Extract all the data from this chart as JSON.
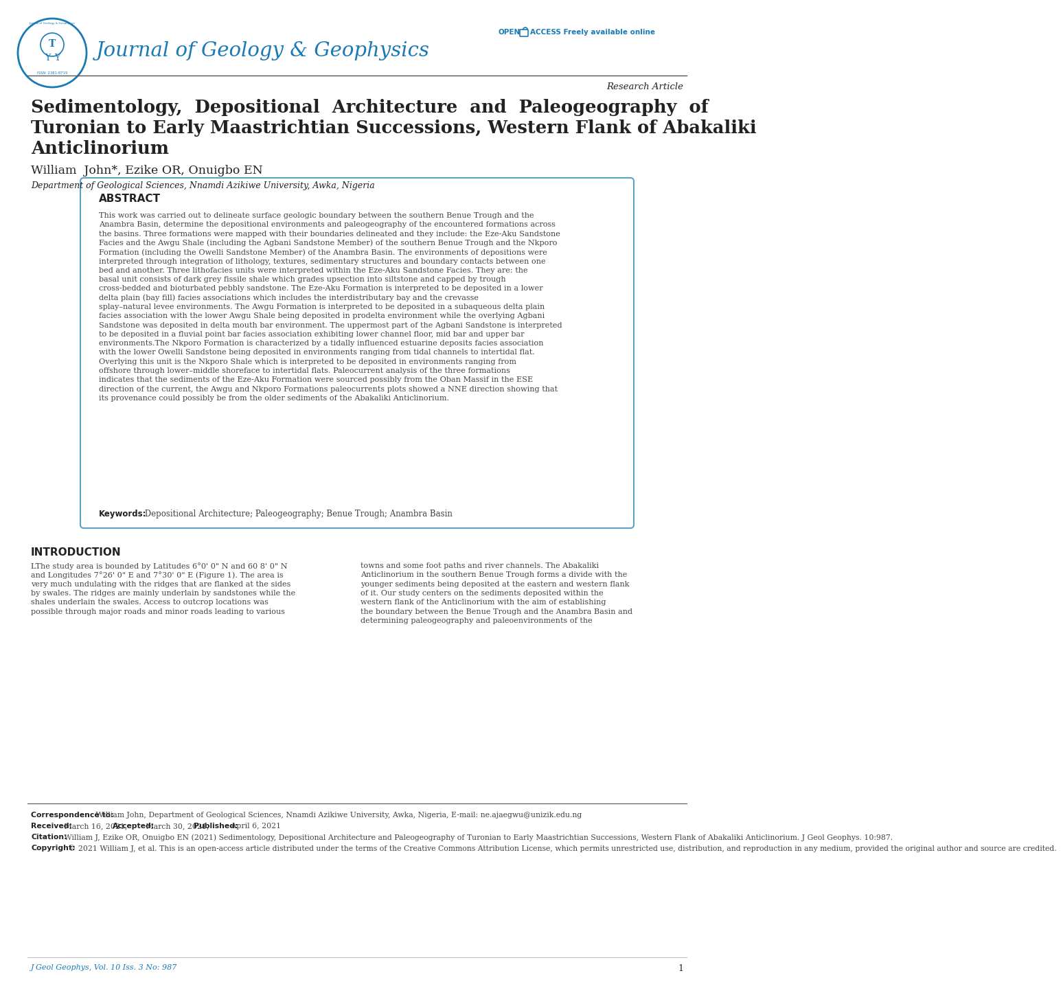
{
  "bg_color": "#ffffff",
  "journal_name": "Journal of Geology & Geophysics",
  "journal_color": "#1a7ab5",
  "research_article_text": "Research Article",
  "divider_color": "#333333",
  "article_title_line1": "Sedimentology,  Depositional  Architecture  and  Paleogeography  of",
  "article_title_line2": "Turonian to Early Maastrichtian Successions, Western Flank of Abakaliki",
  "article_title_line3": "Anticlinorium",
  "authors": "William  John*, Ezike OR, Onuigbo EN",
  "affiliation": "Department of Geological Sciences, Nnamdi Azikiwe University, Awka, Nigeria",
  "abstract_title": "ABSTRACT",
  "abstract_body": "This work was carried out to delineate surface geologic boundary between the southern Benue Trough and the Anambra Basin, determine the depositional environments and paleogeography of the encountered formations across the basins. Three formations were mapped with their boundaries delineated and they include: the Eze-Aku Sandstone Facies and the Awgu Shale (including the Agbani Sandstone Member) of the southern Benue Trough and the Nkporo Formation (including the Owelli Sandstone Member) of the Anambra Basin. The environments of depositions were interpreted through integration of lithology, textures, sedimentary structures and boundary contacts between one bed and another. Three lithofacies units were interpreted within the Eze-Aku Sandstone Facies. They are: the basal unit consists of dark grey fissile shale which grades upsection into siltstone and capped by trough cross-bedded and bioturbated pebbly sandstone. The Eze-Aku Formation is interpreted to be deposited in a lower delta plain (bay fill) facies associations which includes the interdistributary bay and the crevasse splay–natural levee environments. The Awgu Formation is interpreted to be deposited in a subaqueous delta plain facies association with the lower Awgu Shale being deposited in prodelta environment while the overlying Agbani Sandstone was deposited in delta mouth bar environment. The uppermost part of the Agbani Sandstone is interpreted to be deposited in a fluvial point bar facies association exhibiting lower channel floor, mid bar and upper bar environments.The Nkporo Formation is characterized by a tidally influenced estuarine deposits facies association with the lower Owelli Sandstone being deposited in environments ranging from tidal channels to intertidal flat. Overlying this unit is the Nkporo Shale which is interpreted to be deposited in environments ranging from offshore through lower–middle shoreface to intertidal flats. Paleocurrent analysis of the three formations indicates that the sediments of the Eze-Aku Formation were sourced possibly from the Oban Massif in the ESE direction of the current, the Awgu and Nkporo Formations paleocurrents plots showed a NNE direction showing that its provenance could possibly be from the older sediments of the Abakaliki Anticlinorium.",
  "keywords_label": "Keywords:",
  "keywords_text": " Depositional Architecture; Paleogeography; Benue Trough; Anambra Basin",
  "intro_heading": "INTRODUCTION",
  "intro_left": "LThe study area is bounded by Latitudes 6°0' 0\" N and 60 8' 0\" N and Longitudes 7°26' 0\" E and 7°30' 0\" E (Figure 1). The area is very much undulating with the ridges that are flanked at the sides by swales. The ridges are mainly underlain by sandstones while the shales underlain the swales. Access to outcrop locations was possible through major roads and minor roads leading to various",
  "intro_right": "towns and some foot paths and river channels. The Abakaliki Anticlinorium in the southern Benue Trough forms a divide with the younger sediments being deposited at the eastern and western flank of it. Our study centers on the sediments deposited within the western flank of the Anticlinorium with the aim of establishing the boundary between the Benue Trough and the Anambra Basin and determining paleogeography and paleoenvironments of the",
  "footer_corr_bold": "Correspondence to:",
  "footer_corr_text": " William John, Department of Geological Sciences, Nnamdi Azikiwe University, Awka, Nigeria, E-mail: ne.ajaegwu@unizik.edu.ng",
  "footer_received_bold": "Received:",
  "footer_received_text": " March 16, 2021, ",
  "footer_accepted_bold": "Accepted:",
  "footer_accepted_text": " March 30, 2021, ",
  "footer_published_bold": "Published:",
  "footer_published_text": " April 6, 2021",
  "footer_citation_bold": "Citation:",
  "footer_citation_text": " William J, Ezike OR, Onuigbo EN (2021) Sedimentology, Depositional Architecture and Paleogeography of Turonian to Early Maastrichtian Successions, Western Flank of Abakaliki Anticlinorium. J Geol Geophys. 10:987.",
  "footer_copyright_bold": "Copyright:",
  "footer_copyright_text": " © 2021 William J, et al. This is an open-access article distributed under the terms of the Creative Commons Attribution License, which permits unrestricted use, distribution, and reproduction in any medium, provided the original author and source are credited.",
  "footer_journal_ref": "J Geol Geophys, Vol. 10 Iss. 3 No: 987",
  "footer_page": "1",
  "abstract_border_color": "#5ba3c9",
  "text_color": "#222222",
  "body_text_color": "#444444",
  "open_access_label": "OPEN",
  "open_access_middle": "ACCESS Freely available online"
}
